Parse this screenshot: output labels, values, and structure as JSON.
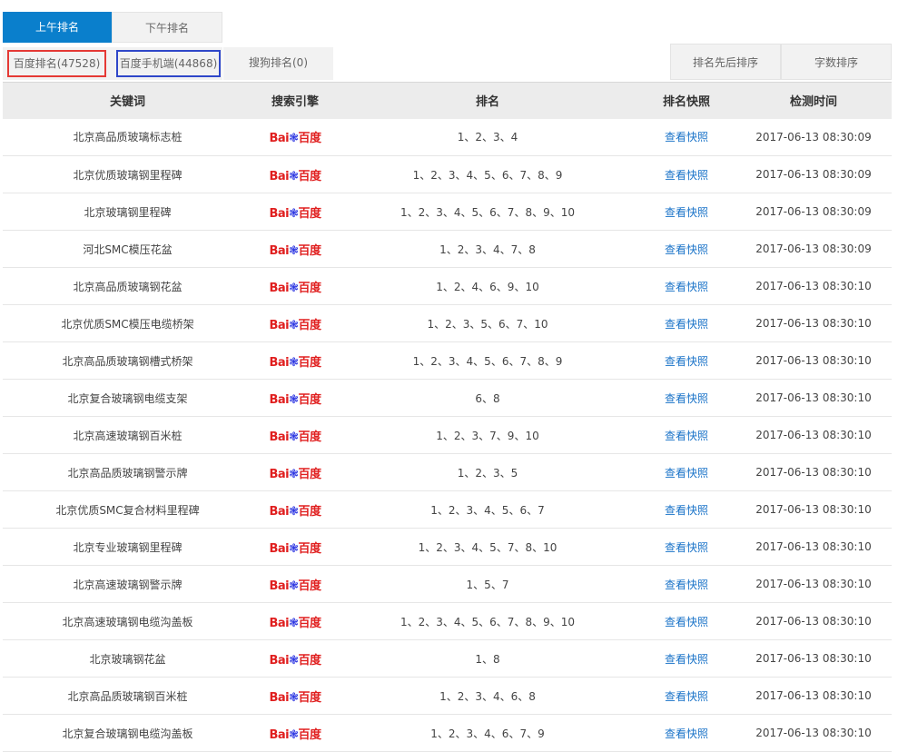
{
  "tabs": [
    {
      "label": "上午排名",
      "active": true
    },
    {
      "label": "下午排名",
      "active": false
    }
  ],
  "subtabs": [
    "百度排名(47528)",
    "百度手机端(44868)",
    "搜狗排名(0)"
  ],
  "sort_buttons": [
    "排名先后排序",
    "字数排序"
  ],
  "columns": [
    "关键词",
    "搜索引擎",
    "排名",
    "排名快照",
    "检测时间"
  ],
  "engine_logo": {
    "text_left": "Bai",
    "text_right": "百度",
    "icon": "paw-icon",
    "red": "#e01f1f",
    "blue": "#2932e1"
  },
  "snapshot_label": "查看快照",
  "colors": {
    "accent": "#0a7fcc",
    "highlight_red": "#e53935",
    "highlight_blue": "#2f47c9",
    "link": "#1a73c8"
  },
  "rows": [
    {
      "keyword": "北京高品质玻璃标志桩",
      "rank": "1、2、3、4",
      "time": "2017-06-13 08:30:09"
    },
    {
      "keyword": "北京优质玻璃钢里程碑",
      "rank": "1、2、3、4、5、6、7、8、9",
      "time": "2017-06-13 08:30:09"
    },
    {
      "keyword": "北京玻璃钢里程碑",
      "rank": "1、2、3、4、5、6、7、8、9、10",
      "time": "2017-06-13 08:30:09"
    },
    {
      "keyword": "河北SMC模压花盆",
      "rank": "1、2、3、4、7、8",
      "time": "2017-06-13 08:30:09"
    },
    {
      "keyword": "北京高品质玻璃钢花盆",
      "rank": "1、2、4、6、9、10",
      "time": "2017-06-13 08:30:10"
    },
    {
      "keyword": "北京优质SMC模压电缆桥架",
      "rank": "1、2、3、5、6、7、10",
      "time": "2017-06-13 08:30:10"
    },
    {
      "keyword": "北京高品质玻璃钢槽式桥架",
      "rank": "1、2、3、4、5、6、7、8、9",
      "time": "2017-06-13 08:30:10"
    },
    {
      "keyword": "北京复合玻璃钢电缆支架",
      "rank": "6、8",
      "time": "2017-06-13 08:30:10"
    },
    {
      "keyword": "北京高速玻璃钢百米桩",
      "rank": "1、2、3、7、9、10",
      "time": "2017-06-13 08:30:10"
    },
    {
      "keyword": "北京高品质玻璃钢警示牌",
      "rank": "1、2、3、5",
      "time": "2017-06-13 08:30:10"
    },
    {
      "keyword": "北京优质SMC复合材料里程碑",
      "rank": "1、2、3、4、5、6、7",
      "time": "2017-06-13 08:30:10"
    },
    {
      "keyword": "北京专业玻璃钢里程碑",
      "rank": "1、2、3、4、5、7、8、10",
      "time": "2017-06-13 08:30:10"
    },
    {
      "keyword": "北京高速玻璃钢警示牌",
      "rank": "1、5、7",
      "time": "2017-06-13 08:30:10"
    },
    {
      "keyword": "北京高速玻璃钢电缆沟盖板",
      "rank": "1、2、3、4、5、6、7、8、9、10",
      "time": "2017-06-13 08:30:10"
    },
    {
      "keyword": "北京玻璃钢花盆",
      "rank": "1、8",
      "time": "2017-06-13 08:30:10"
    },
    {
      "keyword": "北京高品质玻璃钢百米桩",
      "rank": "1、2、3、4、6、8",
      "time": "2017-06-13 08:30:10"
    },
    {
      "keyword": "北京复合玻璃钢电缆沟盖板",
      "rank": "1、2、3、4、6、7、9",
      "time": "2017-06-13 08:30:10"
    }
  ]
}
